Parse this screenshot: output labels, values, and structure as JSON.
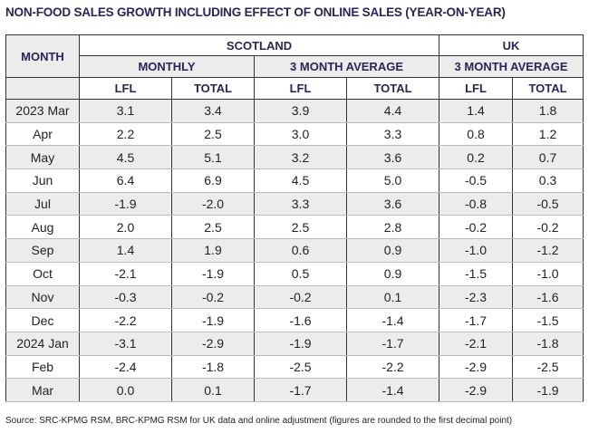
{
  "title": "NON-FOOD SALES GROWTH INCLUDING EFFECT OF ONLINE SALES (YEAR-ON-YEAR)",
  "headers": {
    "month": "MONTH",
    "scotland": "SCOTLAND",
    "uk": "UK",
    "monthly": "MONTHLY",
    "avg3_scot": "3 MONTH AVERAGE",
    "avg3_uk": "3 MONTH AVERAGE",
    "lfl": "LFL",
    "total": "TOTAL"
  },
  "rows": [
    [
      "2023 Mar",
      "3.1",
      "3.4",
      "3.9",
      "4.4",
      "1.4",
      "1.8"
    ],
    [
      "Apr",
      "2.2",
      "2.5",
      "3.0",
      "3.3",
      "0.8",
      "1.2"
    ],
    [
      "May",
      "4.5",
      "5.1",
      "3.2",
      "3.6",
      "0.2",
      "0.7"
    ],
    [
      "Jun",
      "6.4",
      "6.9",
      "4.5",
      "5.0",
      "-0.5",
      "0.3"
    ],
    [
      "Jul",
      "-1.9",
      "-2.0",
      "3.3",
      "3.6",
      "-0.8",
      "-0.5"
    ],
    [
      "Aug",
      "2.0",
      "2.5",
      "2.5",
      "2.8",
      "-0.2",
      "-0.2"
    ],
    [
      "Sep",
      "1.4",
      "1.9",
      "0.6",
      "0.9",
      "-1.0",
      "-1.2"
    ],
    [
      "Oct",
      "-2.1",
      "-1.9",
      "0.5",
      "0.9",
      "-1.5",
      "-1.0"
    ],
    [
      "Nov",
      "-0.3",
      "-0.2",
      "-0.2",
      "0.1",
      "-2.3",
      "-1.6"
    ],
    [
      "Dec",
      "-2.2",
      "-1.9",
      "-1.6",
      "-1.4",
      "-1.7",
      "-1.5"
    ],
    [
      "2024 Jan",
      "-3.1",
      "-2.9",
      "-1.9",
      "-1.7",
      "-2.1",
      "-1.8"
    ],
    [
      "Feb",
      "-2.4",
      "-1.8",
      "-2.5",
      "-2.2",
      "-2.9",
      "-2.5"
    ],
    [
      "Mar",
      "0.0",
      "0.1",
      "-1.7",
      "-1.4",
      "-2.9",
      "-1.9"
    ]
  ],
  "source": "Source: SRC-KPMG RSM, BRC-KPMG RSM for UK data and online adjustment (figures are rounded to the first decimal point)"
}
